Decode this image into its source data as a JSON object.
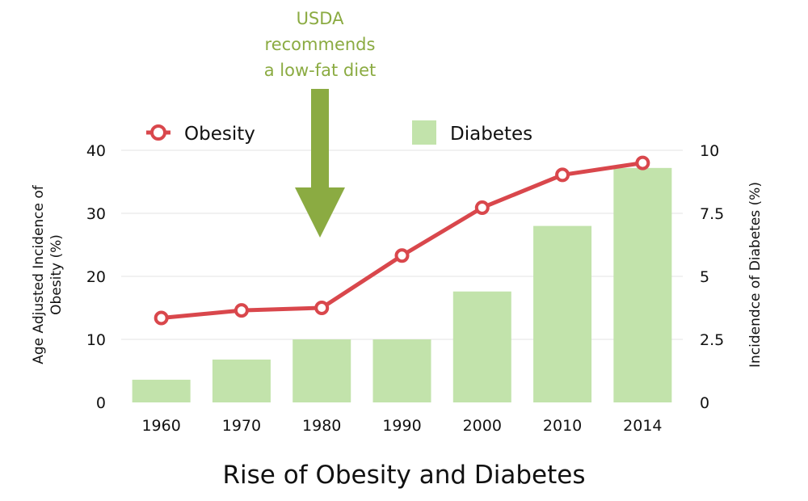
{
  "chart_data": {
    "type": "bar+line",
    "title": "Rise of Obesity and Diabetes",
    "categories": [
      "1960",
      "1970",
      "1980",
      "1990",
      "2000",
      "2010",
      "2014"
    ],
    "series": [
      {
        "name": "Obesity",
        "kind": "line",
        "axis": "left",
        "values": [
          13.4,
          14.6,
          15.0,
          23.3,
          30.9,
          36.1,
          38.0
        ]
      },
      {
        "name": "Diabetes",
        "kind": "bar",
        "axis": "right",
        "values": [
          0.9,
          1.7,
          2.5,
          2.5,
          4.4,
          7.0,
          9.3
        ]
      }
    ],
    "y_left": {
      "label": "Age Adjusted Incidence of Obesity (%)",
      "label_lines": [
        "Age Adjusted Incidence of",
        "Obesity (%)"
      ],
      "ylim": [
        0,
        40
      ],
      "ticks": [
        "0",
        "10",
        "20",
        "30",
        "40"
      ]
    },
    "y_right": {
      "label": "Incidendce of Diabetes (%)",
      "ylim": [
        0,
        10
      ],
      "ticks": [
        "0",
        "2.5",
        "5",
        "7.5",
        "10"
      ]
    },
    "grid": true,
    "legend_position": "top",
    "annotation": {
      "lines": [
        "USDA",
        "recommends",
        "a low-fat diet"
      ],
      "points_to": "1980"
    },
    "colors": {
      "line": "#d9474c",
      "marker_fill": "#ffffff",
      "bar": "#c2e3ab",
      "annotation": "#8bab42",
      "grid": "#e3e3e3"
    }
  }
}
